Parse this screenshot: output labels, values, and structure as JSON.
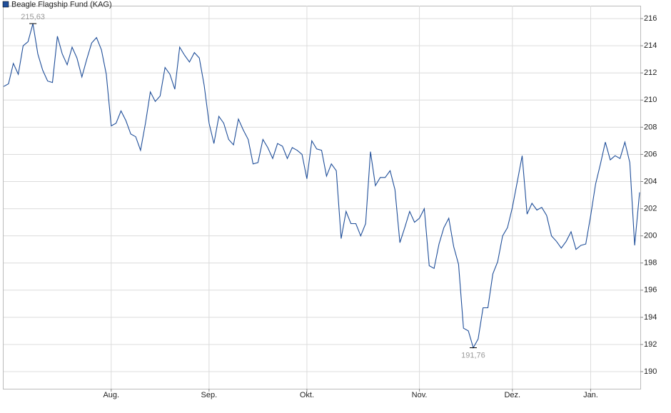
{
  "chart_data": {
    "type": "line",
    "categories": [
      null,
      null,
      null,
      null,
      null,
      null,
      null,
      null,
      null,
      null,
      null,
      null,
      null,
      null,
      null,
      null,
      null,
      null,
      null,
      null,
      null,
      null,
      "Aug.",
      null,
      null,
      null,
      null,
      null,
      null,
      null,
      null,
      null,
      null,
      null,
      null,
      null,
      null,
      null,
      null,
      null,
      null,
      null,
      "Sep.",
      null,
      null,
      null,
      null,
      null,
      null,
      null,
      null,
      null,
      null,
      null,
      null,
      null,
      null,
      null,
      null,
      null,
      null,
      null,
      "Okt.",
      null,
      null,
      null,
      null,
      null,
      null,
      null,
      null,
      null,
      null,
      null,
      null,
      null,
      null,
      null,
      null,
      null,
      null,
      null,
      null,
      null,
      null,
      "Nov.",
      null,
      null,
      null,
      null,
      null,
      null,
      null,
      null,
      null,
      null,
      null,
      null,
      null,
      null,
      null,
      null,
      null,
      null,
      "Dez.",
      null,
      null,
      null,
      null,
      null,
      null,
      null,
      null,
      null,
      null,
      null,
      null,
      null,
      null,
      null,
      "Jan.",
      null,
      null,
      null,
      null,
      null,
      null,
      null,
      null,
      null,
      null
    ],
    "series": [
      {
        "name": "Beagle Flagship Fund (KAG)",
        "color": "#1f4e99",
        "values": [
          211.0,
          211.2,
          212.7,
          211.9,
          214.0,
          214.3,
          215.63,
          213.4,
          212.2,
          211.4,
          211.3,
          214.7,
          213.4,
          212.6,
          213.9,
          213.1,
          211.7,
          213.0,
          214.2,
          214.6,
          213.7,
          211.9,
          208.1,
          208.3,
          209.2,
          208.5,
          207.5,
          207.3,
          206.3,
          208.3,
          210.6,
          209.9,
          210.3,
          212.4,
          211.9,
          210.8,
          213.9,
          213.3,
          212.8,
          213.5,
          213.1,
          211.1,
          208.3,
          206.8,
          208.8,
          208.3,
          207.1,
          206.7,
          208.6,
          207.8,
          207.1,
          205.3,
          205.4,
          207.1,
          206.5,
          205.7,
          206.8,
          206.6,
          205.7,
          206.5,
          206.3,
          206.0,
          204.2,
          207.0,
          206.4,
          206.3,
          204.4,
          205.3,
          204.8,
          199.8,
          201.8,
          200.9,
          200.9,
          200.0,
          200.9,
          206.2,
          203.7,
          204.3,
          204.3,
          204.8,
          203.4,
          199.5,
          200.6,
          201.8,
          201.0,
          201.3,
          202.0,
          197.8,
          197.6,
          199.4,
          200.6,
          201.3,
          199.2,
          197.9,
          193.2,
          193.0,
          191.76,
          192.4,
          194.7,
          194.7,
          197.2,
          198.1,
          200.0,
          200.6,
          202.1,
          204.0,
          205.9,
          201.6,
          202.4,
          201.9,
          202.1,
          201.5,
          200.0,
          199.6,
          199.1,
          199.6,
          200.3,
          199.0,
          199.3,
          199.4,
          201.5,
          203.8,
          205.3,
          206.9,
          205.6,
          205.9,
          205.7,
          206.9,
          205.4,
          199.3,
          203.2
        ]
      }
    ],
    "annotations": [
      {
        "value": 215.63,
        "label": "215,63",
        "position": "above"
      },
      {
        "value": 191.76,
        "label": "191,76",
        "position": "below"
      }
    ],
    "ylim": [
      188.74,
      216.95
    ],
    "yticks": [
      190,
      192,
      194,
      196,
      198,
      200,
      202,
      204,
      206,
      208,
      210,
      212,
      214,
      216
    ],
    "grid": true,
    "legend": "top-left"
  }
}
